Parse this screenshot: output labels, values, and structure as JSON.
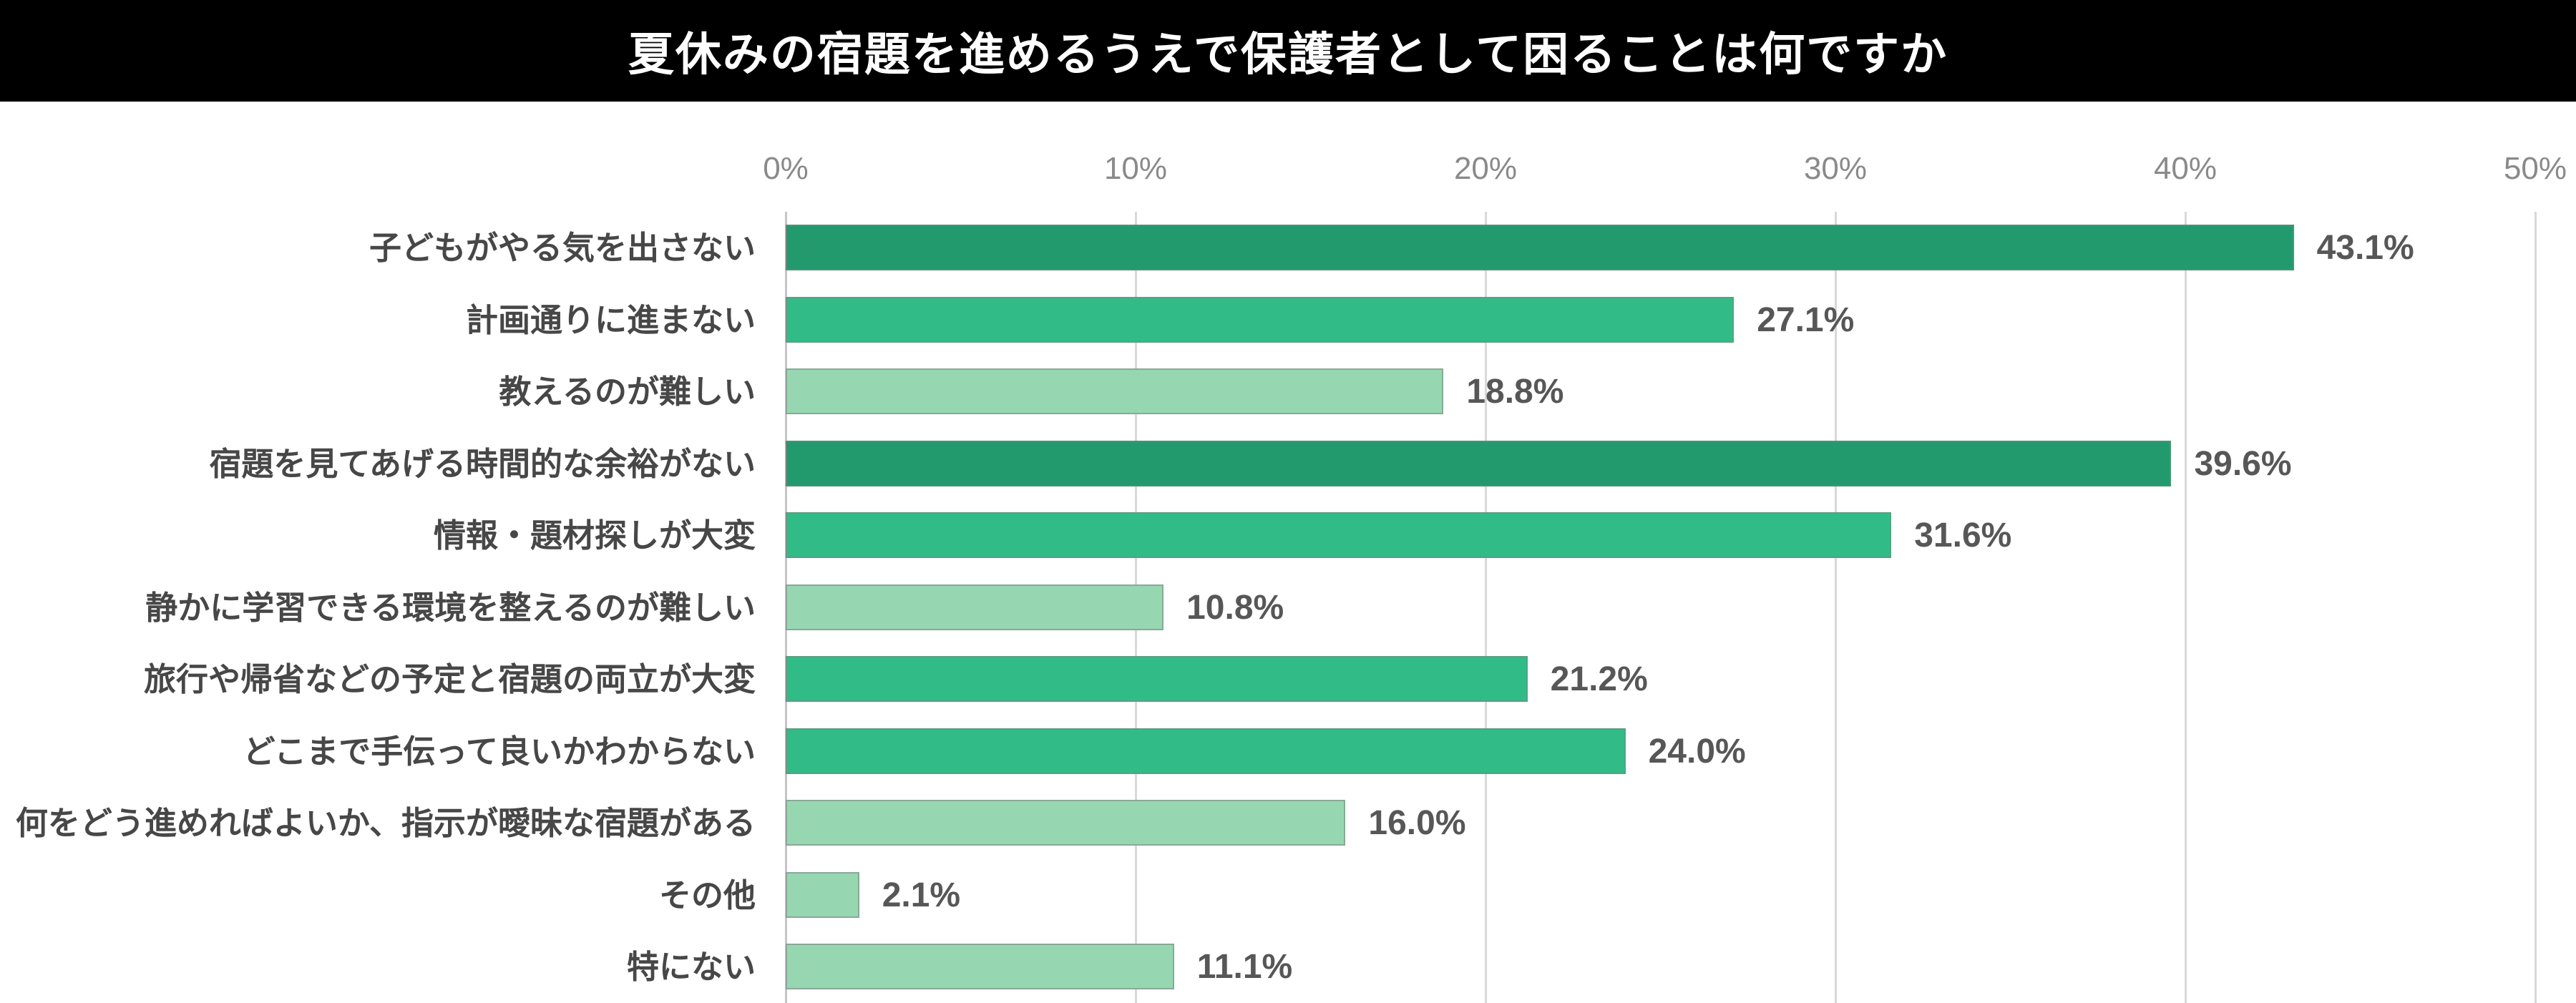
{
  "title": "夏休みの宿題を進めるうえで保護者として困ることは何ですか",
  "colors": {
    "title_bg": "#000000",
    "title_text": "#ffffff",
    "bar_dark": "#229a6d",
    "bar_medium": "#31bc87",
    "bar_light": "#96d7b1",
    "bar_border": "#828282",
    "gridline": "#d9d9d9",
    "axis_line": "#c6c6c6",
    "category_text": "#474747",
    "value_text": "#575757",
    "tick_text": "#8a8a8a"
  },
  "chart_data": {
    "type": "bar",
    "orientation": "horizontal",
    "title": "夏休みの宿題を進めるうえで保護者として困ることは何ですか",
    "xlabel": "",
    "ylabel": "",
    "xlim": [
      0,
      50
    ],
    "grid": true,
    "legend": "none",
    "x_ticks": [
      {
        "label": "0%",
        "value": 0
      },
      {
        "label": "10%",
        "value": 10
      },
      {
        "label": "20%",
        "value": 20
      },
      {
        "label": "30%",
        "value": 30
      },
      {
        "label": "40%",
        "value": 40
      },
      {
        "label": "50%",
        "value": 50
      }
    ],
    "categories": [
      "子どもがやる気を出さない",
      "計画通りに進まない",
      "教えるのが難しい",
      "宿題を見てあげる時間的な余裕がない",
      "情報・題材探しが大変",
      "静かに学習できる環境を整えるのが難しい",
      "旅行や帰省などの予定と宿題の両立が大変",
      "どこまで手伝って良いかわからない",
      "何をどう進めればよいか、指示が曖昧な宿題がある",
      "その他",
      "特にない"
    ],
    "values": [
      43.1,
      27.1,
      18.8,
      39.6,
      31.6,
      10.8,
      21.2,
      24.0,
      16.0,
      2.1,
      11.1
    ],
    "items": [
      {
        "label": "子どもがやる気を出さない",
        "value": 43.1,
        "display_value": "43.1%",
        "tier": "dark"
      },
      {
        "label": "計画通りに進まない",
        "value": 27.1,
        "display_value": "27.1%",
        "tier": "medium"
      },
      {
        "label": "教えるのが難しい",
        "value": 18.8,
        "display_value": "18.8%",
        "tier": "light"
      },
      {
        "label": "宿題を見てあげる時間的な余裕がない",
        "value": 39.6,
        "display_value": "39.6%",
        "tier": "dark"
      },
      {
        "label": "情報・題材探しが大変",
        "value": 31.6,
        "display_value": "31.6%",
        "tier": "medium"
      },
      {
        "label": "静かに学習できる環境を整えるのが難しい",
        "value": 10.8,
        "display_value": "10.8%",
        "tier": "light"
      },
      {
        "label": "旅行や帰省などの予定と宿題の両立が大変",
        "value": 21.2,
        "display_value": "21.2%",
        "tier": "medium"
      },
      {
        "label": "どこまで手伝って良いかわからない",
        "value": 24.0,
        "display_value": "24.0%",
        "tier": "medium"
      },
      {
        "label": "何をどう進めればよいか、指示が曖昧な宿題がある",
        "value": 16.0,
        "display_value": "16.0%",
        "tier": "light"
      },
      {
        "label": "その他",
        "value": 2.1,
        "display_value": "2.1%",
        "tier": "light"
      },
      {
        "label": "特にない",
        "value": 11.1,
        "display_value": "11.1%",
        "tier": "light"
      }
    ]
  }
}
